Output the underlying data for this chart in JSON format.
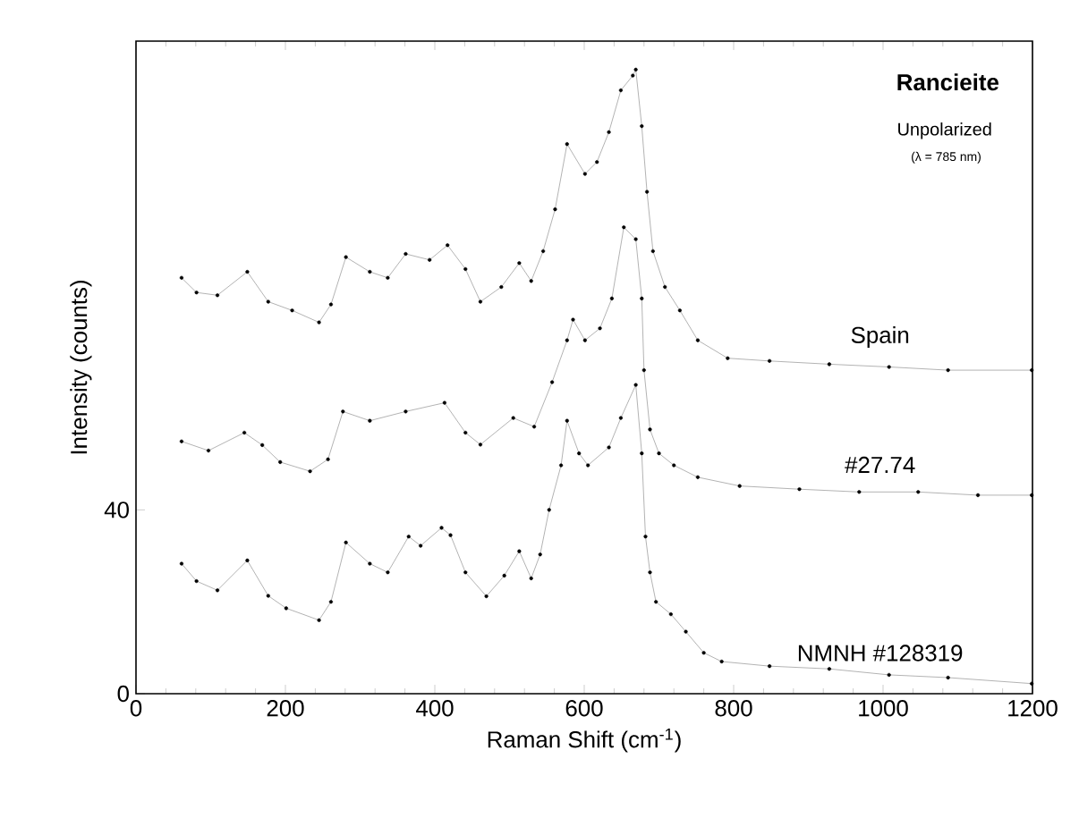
{
  "chart_data": {
    "type": "line",
    "title": "Rancieite",
    "subtitle": "Unpolarized",
    "annotations": [
      "(λ = 785 nm)"
    ],
    "xlabel": "Raman Shift (cm$^{-1}$)",
    "ylabel": "Intensity (counts)",
    "xlim": [
      0,
      1200
    ],
    "ylim": [
      0,
      142
    ],
    "xticks": [
      0,
      200,
      400,
      600,
      800,
      1000,
      1200
    ],
    "yticks": [
      0,
      40
    ],
    "tick_labels": "xy",
    "marker": "circle",
    "line_style": "solid",
    "series": [
      {
        "name": "Spain",
        "color": "#000000",
        "x": [
          61,
          81,
          109,
          149,
          177,
          209,
          245,
          261,
          281,
          313,
          337,
          361,
          393,
          417,
          441,
          461,
          489,
          513,
          529,
          545,
          561,
          577,
          601,
          617,
          633,
          649,
          665,
          669,
          677,
          684,
          692,
          708,
          728,
          752,
          792,
          848,
          928,
          1008,
          1087,
          1199
        ],
        "values": [
          90.5,
          87.3,
          86.7,
          91.8,
          85.3,
          83.4,
          80.8,
          84.7,
          95,
          91.8,
          90.5,
          95.7,
          94.4,
          97.6,
          92.4,
          85.3,
          88.5,
          93.7,
          89.8,
          96.3,
          105.4,
          119.6,
          113.1,
          115.7,
          122.2,
          131.3,
          134.5,
          135.8,
          123.5,
          109.2,
          96.3,
          88.5,
          83.4,
          76.9,
          73,
          72.4,
          71.7,
          71.1,
          70.4,
          70.4
        ]
      },
      {
        "name": "#27.74",
        "color": "#000000",
        "x": [
          61,
          97,
          145,
          169,
          193,
          233,
          257,
          277,
          313,
          361,
          413,
          441,
          461,
          505,
          533,
          557,
          577,
          585,
          601,
          621,
          637,
          653,
          669,
          677,
          680,
          688,
          700,
          720,
          752,
          808,
          888,
          968,
          1047,
          1127,
          1199
        ],
        "values": [
          54.9,
          52.9,
          56.8,
          54.1,
          50.4,
          48.4,
          51,
          61.4,
          59.4,
          61.4,
          63.3,
          56.8,
          54.2,
          60,
          58.1,
          67.8,
          76.9,
          81.4,
          76.9,
          79.5,
          86,
          101.5,
          98.9,
          86,
          70.4,
          57.5,
          52.3,
          49.7,
          47.1,
          45.2,
          44.5,
          43.9,
          43.9,
          43.2,
          43.2
        ]
      },
      {
        "name": "NMNH #128319",
        "color": "#000000",
        "x": [
          61,
          81,
          109,
          149,
          177,
          201,
          245,
          261,
          281,
          313,
          337,
          365,
          381,
          409,
          421,
          441,
          469,
          493,
          513,
          529,
          541,
          553,
          569,
          577,
          593,
          605,
          633,
          649,
          669,
          677,
          682,
          688,
          696,
          716,
          736,
          760,
          784,
          848,
          928,
          1008,
          1087,
          1199
        ],
        "values": [
          28.3,
          24.5,
          22.5,
          29,
          21.3,
          18.6,
          16,
          20,
          32.9,
          28.3,
          26.4,
          34.2,
          32.2,
          36.1,
          34.5,
          26.4,
          21.2,
          25.7,
          31,
          25.1,
          30.3,
          40,
          49.7,
          59.4,
          52.3,
          49.7,
          53.6,
          60,
          67.2,
          52.3,
          34.2,
          26.4,
          20,
          17.3,
          13.5,
          8.9,
          7,
          6,
          5.4,
          4.1,
          3.5,
          2.2
        ]
      }
    ]
  }
}
